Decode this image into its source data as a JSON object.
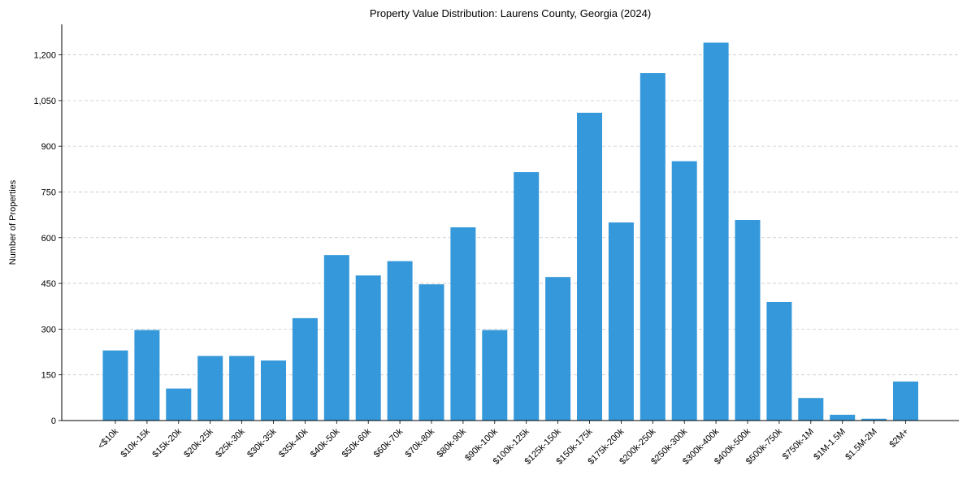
{
  "chart_data": {
    "type": "bar",
    "title": "Property Value Distribution: Laurens County, Georgia (2024)",
    "xlabel": "",
    "ylabel": "Number of Properties",
    "categories": [
      "<$10k",
      "$10k-15k",
      "$15k-20k",
      "$20k-25k",
      "$25k-30k",
      "$30k-35k",
      "$35k-40k",
      "$40k-50k",
      "$50k-60k",
      "$60k-70k",
      "$70k-80k",
      "$80k-90k",
      "$90k-100k",
      "$100k-125k",
      "$125k-150k",
      "$150k-175k",
      "$175k-200k",
      "$200k-250k",
      "$250k-300k",
      "$300k-400k",
      "$400k-500k",
      "$500k-750k",
      "$750k-1M",
      "$1M-1.5M",
      "$1.5M-2M",
      "$2M+"
    ],
    "values": [
      230,
      297,
      105,
      212,
      212,
      197,
      336,
      543,
      476,
      523,
      447,
      634,
      297,
      815,
      471,
      1010,
      650,
      1140,
      851,
      1240,
      658,
      389,
      74,
      19,
      6,
      128
    ],
    "ylim": [
      0,
      1300
    ],
    "yticks": [
      0,
      150,
      300,
      450,
      600,
      750,
      900,
      1050,
      1200
    ],
    "ytick_labels": [
      "0",
      "150",
      "300",
      "450",
      "600",
      "750",
      "900",
      "1,050",
      "1,200"
    ],
    "grid": "y-dashed",
    "bar_color": "#3498db"
  }
}
